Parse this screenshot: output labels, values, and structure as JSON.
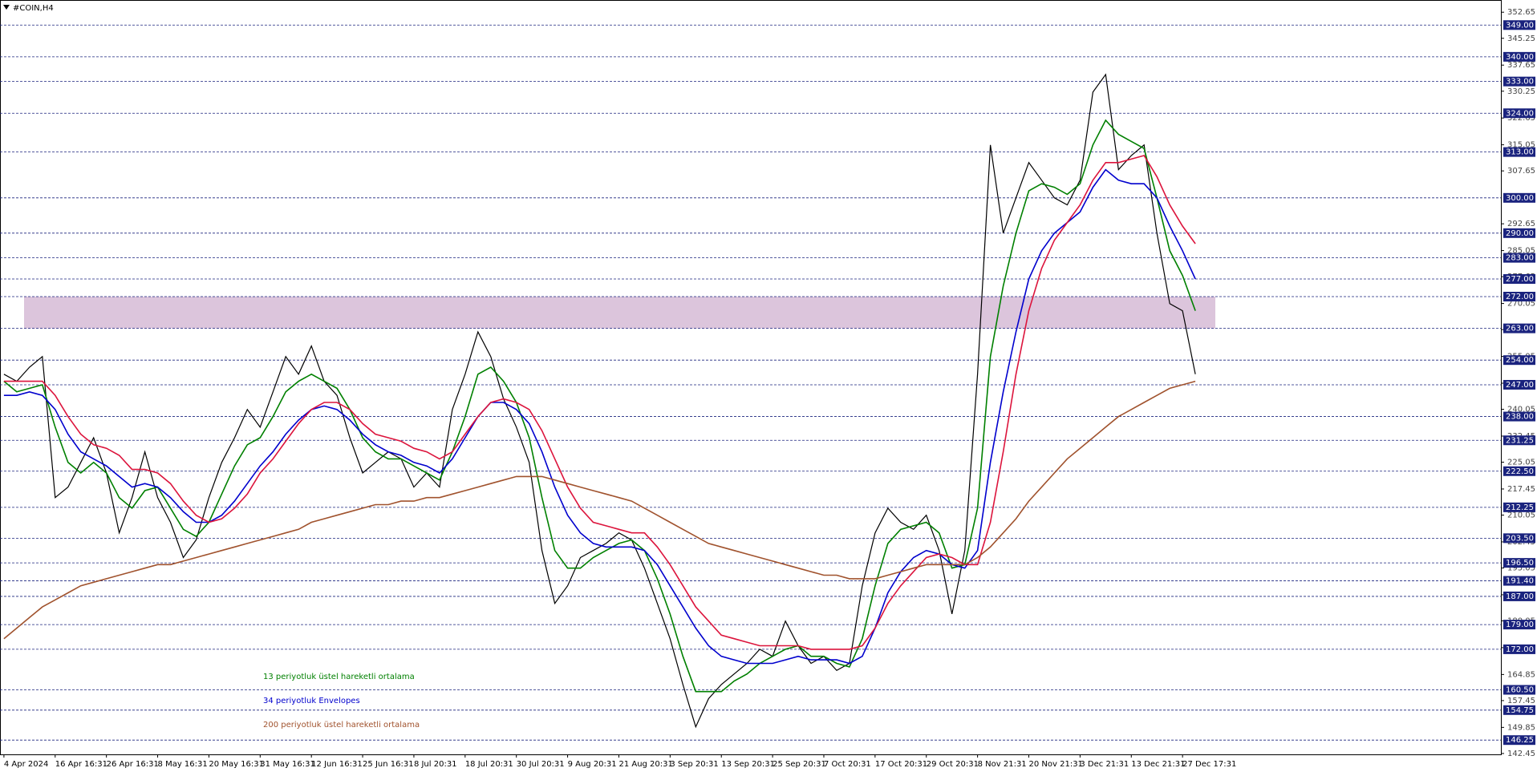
{
  "chart_data": {
    "type": "line",
    "title": "#COIN,H4",
    "categories": [
      "4 Apr 2024",
      null,
      null,
      null,
      "16 Apr 16:31",
      null,
      null,
      null,
      "26 Apr 16:31",
      null,
      null,
      null,
      "8 May 16:31",
      null,
      null,
      null,
      "20 May 16:31",
      null,
      null,
      null,
      "31 May 16:31",
      null,
      null,
      null,
      "12 Jun 16:31",
      null,
      null,
      null,
      "25 Jun 16:31",
      null,
      null,
      null,
      "8 Jul 20:31",
      null,
      null,
      null,
      "18 Jul 20:31",
      null,
      null,
      null,
      "30 Jul 20:31",
      null,
      null,
      null,
      "9 Aug 20:31",
      null,
      null,
      null,
      "21 Aug 20:31",
      null,
      null,
      null,
      "3 Sep 20:31",
      null,
      null,
      null,
      "13 Sep 20:31",
      null,
      null,
      null,
      "25 Sep 20:31",
      null,
      null,
      null,
      "7 Oct 20:31",
      null,
      null,
      null,
      "17 Oct 20:31",
      null,
      null,
      null,
      "29 Oct 20:31",
      null,
      null,
      null,
      "8 Nov 21:31",
      null,
      null,
      null,
      "20 Nov 21:31",
      null,
      null,
      null,
      "3 Dec 21:31",
      null,
      null,
      null,
      "13 Dec 21:31",
      null,
      null,
      null,
      "27 Dec 17:31",
      null
    ],
    "series": [
      {
        "color": "#000000",
        "values": [
          250,
          248,
          252,
          255,
          215,
          218,
          225,
          232,
          222,
          205,
          215,
          228,
          215,
          208,
          198,
          203,
          215,
          225,
          232,
          240,
          235,
          245,
          255,
          250,
          258,
          248,
          244,
          232,
          222,
          225,
          228,
          226,
          218,
          222,
          218,
          240,
          250,
          262,
          255,
          243,
          235,
          225,
          200,
          185,
          190,
          198,
          200,
          202,
          205,
          203,
          195,
          185,
          175,
          162,
          150,
          158,
          162,
          165,
          168,
          172,
          170,
          180,
          173,
          168,
          170,
          166,
          168,
          190,
          205,
          212,
          208,
          206,
          210,
          200,
          182,
          200,
          250,
          315,
          290,
          300,
          310,
          305,
          300,
          298,
          305,
          330,
          335,
          308,
          312,
          315,
          290,
          270,
          268,
          250
        ]
      },
      {
        "name": "13 periyotluk üstel hareketli ortalama",
        "color": "#008000",
        "values": [
          248,
          245,
          246,
          247,
          235,
          225,
          222,
          225,
          222,
          215,
          212,
          217,
          218,
          212,
          206,
          204,
          208,
          216,
          224,
          230,
          232,
          238,
          245,
          248,
          250,
          248,
          246,
          240,
          232,
          228,
          226,
          226,
          224,
          222,
          220,
          228,
          238,
          250,
          252,
          248,
          242,
          232,
          215,
          200,
          195,
          195,
          198,
          200,
          202,
          203,
          200,
          192,
          182,
          170,
          160,
          160,
          160,
          163,
          165,
          168,
          170,
          172,
          173,
          170,
          170,
          168,
          167,
          175,
          190,
          202,
          206,
          207,
          208,
          205,
          195,
          196,
          212,
          255,
          275,
          290,
          302,
          304,
          303,
          301,
          304,
          315,
          322,
          318,
          316,
          314,
          300,
          285,
          278,
          268
        ]
      },
      {
        "name": "34 periyotluk Envelopes",
        "color": "#0000cd",
        "values": [
          244,
          244,
          245,
          244,
          240,
          233,
          228,
          226,
          224,
          221,
          218,
          219,
          218,
          215,
          211,
          208,
          208,
          210,
          214,
          219,
          224,
          228,
          233,
          237,
          240,
          241,
          240,
          237,
          233,
          230,
          228,
          227,
          225,
          224,
          222,
          226,
          232,
          238,
          242,
          242,
          240,
          236,
          228,
          218,
          210,
          205,
          202,
          201,
          201,
          201,
          200,
          196,
          190,
          184,
          178,
          173,
          170,
          169,
          168,
          168,
          168,
          169,
          170,
          169,
          169,
          169,
          168,
          170,
          178,
          188,
          194,
          198,
          200,
          199,
          196,
          195,
          200,
          225,
          245,
          262,
          277,
          285,
          290,
          293,
          296,
          303,
          308,
          305,
          304,
          304,
          300,
          292,
          285,
          277
        ]
      },
      {
        "color": "#dc143c",
        "values": [
          248,
          248,
          248,
          248,
          244,
          238,
          233,
          230,
          229,
          227,
          223,
          223,
          222,
          219,
          214,
          210,
          208,
          209,
          212,
          216,
          222,
          226,
          231,
          236,
          240,
          242,
          242,
          240,
          236,
          233,
          232,
          231,
          229,
          228,
          226,
          228,
          233,
          238,
          242,
          243,
          242,
          240,
          234,
          226,
          218,
          212,
          208,
          207,
          206,
          205,
          205,
          201,
          196,
          190,
          184,
          180,
          176,
          175,
          174,
          173,
          173,
          173,
          173,
          172,
          172,
          172,
          172,
          173,
          178,
          185,
          190,
          194,
          198,
          199,
          198,
          196,
          196,
          208,
          228,
          250,
          268,
          280,
          288,
          293,
          298,
          305,
          310,
          310,
          311,
          312,
          306,
          298,
          292,
          287
        ]
      },
      {
        "name": "200 periyotluk üstel hareketli ortalama",
        "color": "#a0522d",
        "values": [
          175,
          178,
          181,
          184,
          186,
          188,
          190,
          191,
          192,
          193,
          194,
          195,
          196,
          196,
          197,
          198,
          199,
          200,
          201,
          202,
          203,
          204,
          205,
          206,
          208,
          209,
          210,
          211,
          212,
          213,
          213,
          214,
          214,
          215,
          215,
          216,
          217,
          218,
          219,
          220,
          221,
          221,
          221,
          220,
          219,
          218,
          217,
          216,
          215,
          214,
          212,
          210,
          208,
          206,
          204,
          202,
          201,
          200,
          199,
          198,
          197,
          196,
          195,
          194,
          193,
          193,
          192,
          192,
          192,
          193,
          194,
          195,
          196,
          196,
          196,
          196,
          198,
          201,
          205,
          209,
          214,
          218,
          222,
          226,
          229,
          232,
          235,
          238,
          240,
          242,
          244,
          246,
          247,
          248
        ]
      }
    ],
    "ylim": [
      142.2,
      355.2
    ],
    "yticks": [
      352.65,
      345.25,
      337.65,
      330.25,
      322.65,
      315.05,
      307.65,
      292.65,
      285.05,
      277.65,
      270.05,
      262.65,
      255.05,
      247.45,
      240.05,
      232.45,
      225.05,
      217.45,
      210.05,
      202.45,
      195.05,
      187.45,
      180.05,
      172.45,
      164.85,
      157.45,
      149.85,
      142.45
    ],
    "levels": [
      {
        "value": 349,
        "label": "349.00"
      },
      {
        "value": 340,
        "label": "340.00"
      },
      {
        "value": 333,
        "label": "333.00"
      },
      {
        "value": 324,
        "label": "324.00"
      },
      {
        "value": 313,
        "label": "313.00"
      },
      {
        "value": 300,
        "label": "300.00"
      },
      {
        "value": 290,
        "label": "290.00"
      },
      {
        "value": 283,
        "label": "283.00"
      },
      {
        "value": 277,
        "label": "277.00"
      },
      {
        "value": 272,
        "label": "272.00"
      },
      {
        "value": 263,
        "label": "263.00"
      },
      {
        "value": 254,
        "label": "254.00"
      },
      {
        "value": 247,
        "label": "247.00"
      },
      {
        "value": 238,
        "label": "238.00"
      },
      {
        "value": 231.25,
        "label": "231.25"
      },
      {
        "value": 222.5,
        "label": "222.50"
      },
      {
        "value": 212.25,
        "label": "212.25"
      },
      {
        "value": 203.5,
        "label": "203.50"
      },
      {
        "value": 196.5,
        "label": "196.50"
      },
      {
        "value": 191.4,
        "label": "191.40"
      },
      {
        "value": 187,
        "label": "187.00"
      },
      {
        "value": 179,
        "label": "179.00"
      },
      {
        "value": 172,
        "label": "172.00"
      },
      {
        "value": 160.5,
        "label": "160.50"
      },
      {
        "value": 154.75,
        "label": "154.75"
      },
      {
        "value": 146.25,
        "label": "146.25"
      }
    ],
    "level_color": "#1a237e",
    "zone": [
      263,
      272
    ],
    "zone_color": "#d8bfd8"
  }
}
